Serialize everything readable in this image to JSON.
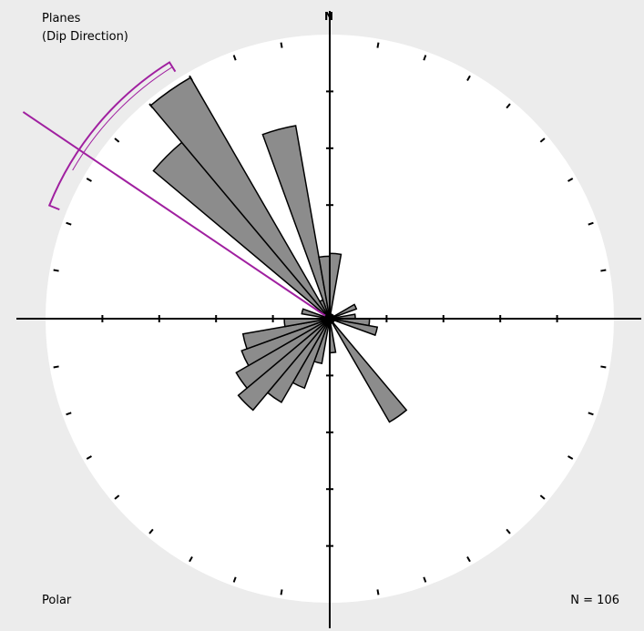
{
  "chart_data": {
    "type": "rose",
    "title": "Planes",
    "subtitle": "(Dip Direction)",
    "north_label": "N",
    "projection_label": "Polar",
    "count_label": "N = 106",
    "bin_width_deg": 10,
    "petals": [
      {
        "from": 280,
        "to": 290,
        "r": 0.1
      },
      {
        "from": 310,
        "to": 320,
        "r": 0.81
      },
      {
        "from": 320,
        "to": 330,
        "r": 0.98
      },
      {
        "from": 330,
        "to": 340,
        "r": 0.07
      },
      {
        "from": 340,
        "to": 350,
        "r": 0.69
      },
      {
        "from": 350,
        "to": 360,
        "r": 0.22
      },
      {
        "from": 0,
        "to": 10,
        "r": 0.23
      },
      {
        "from": 60,
        "to": 70,
        "r": 0.1
      },
      {
        "from": 80,
        "to": 90,
        "r": 0.09
      },
      {
        "from": 90,
        "to": 100,
        "r": 0.14
      },
      {
        "from": 100,
        "to": 110,
        "r": 0.17
      },
      {
        "from": 140,
        "to": 150,
        "r": 0.42
      },
      {
        "from": 170,
        "to": 180,
        "r": 0.12
      },
      {
        "from": 190,
        "to": 200,
        "r": 0.16
      },
      {
        "from": 200,
        "to": 210,
        "r": 0.26
      },
      {
        "from": 210,
        "to": 220,
        "r": 0.34
      },
      {
        "from": 220,
        "to": 230,
        "r": 0.42
      },
      {
        "from": 230,
        "to": 240,
        "r": 0.38
      },
      {
        "from": 240,
        "to": 250,
        "r": 0.33
      },
      {
        "from": 250,
        "to": 260,
        "r": 0.31
      },
      {
        "from": 260,
        "to": 270,
        "r": 0.16
      }
    ],
    "mean_direction_deg": 304,
    "confidence_arc_deg": [
      292,
      328
    ],
    "colors": {
      "background": "#ececec",
      "circle": "#ffffff",
      "petal_fill": "#8c8c8c",
      "petal_stroke": "#000000",
      "mean_line": "#a020a0"
    }
  }
}
